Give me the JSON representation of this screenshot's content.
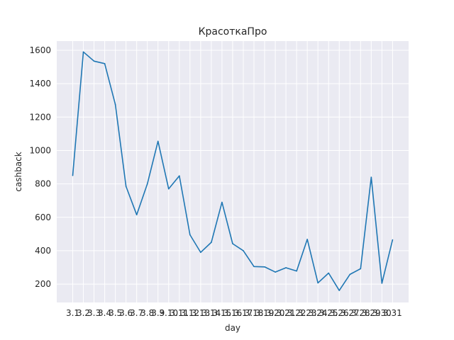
{
  "chart_data": {
    "type": "line",
    "title": "КрасоткаПро",
    "xlabel": "day",
    "ylabel": "cashback",
    "x": [
      "3.1",
      "3.2",
      "3.3",
      "3.4",
      "3.5",
      "3.6",
      "3.7",
      "3.8",
      "3.9",
      "3.10",
      "3.11",
      "3.12",
      "3.13",
      "3.14",
      "3.15",
      "3.16",
      "3.17",
      "3.18",
      "3.19",
      "3.20",
      "3.21",
      "3.22",
      "3.23",
      "3.24",
      "3.25",
      "3.26",
      "3.27",
      "3.28",
      "3.29",
      "3.30",
      "3.31"
    ],
    "series": [
      {
        "values": [
          850,
          1590,
          1535,
          1520,
          1275,
          785,
          615,
          800,
          1055,
          770,
          848,
          495,
          390,
          450,
          690,
          442,
          400,
          305,
          303,
          272,
          298,
          278,
          468,
          207,
          266,
          162,
          258,
          292,
          840,
          205,
          465
        ]
      }
    ],
    "yticks": [
      200,
      400,
      600,
      800,
      1000,
      1200,
      1400,
      1600
    ],
    "ylim": [
      90,
      1655
    ],
    "grid": true,
    "background_color": "#eaeaf2",
    "line_color": "#1f77b4"
  }
}
